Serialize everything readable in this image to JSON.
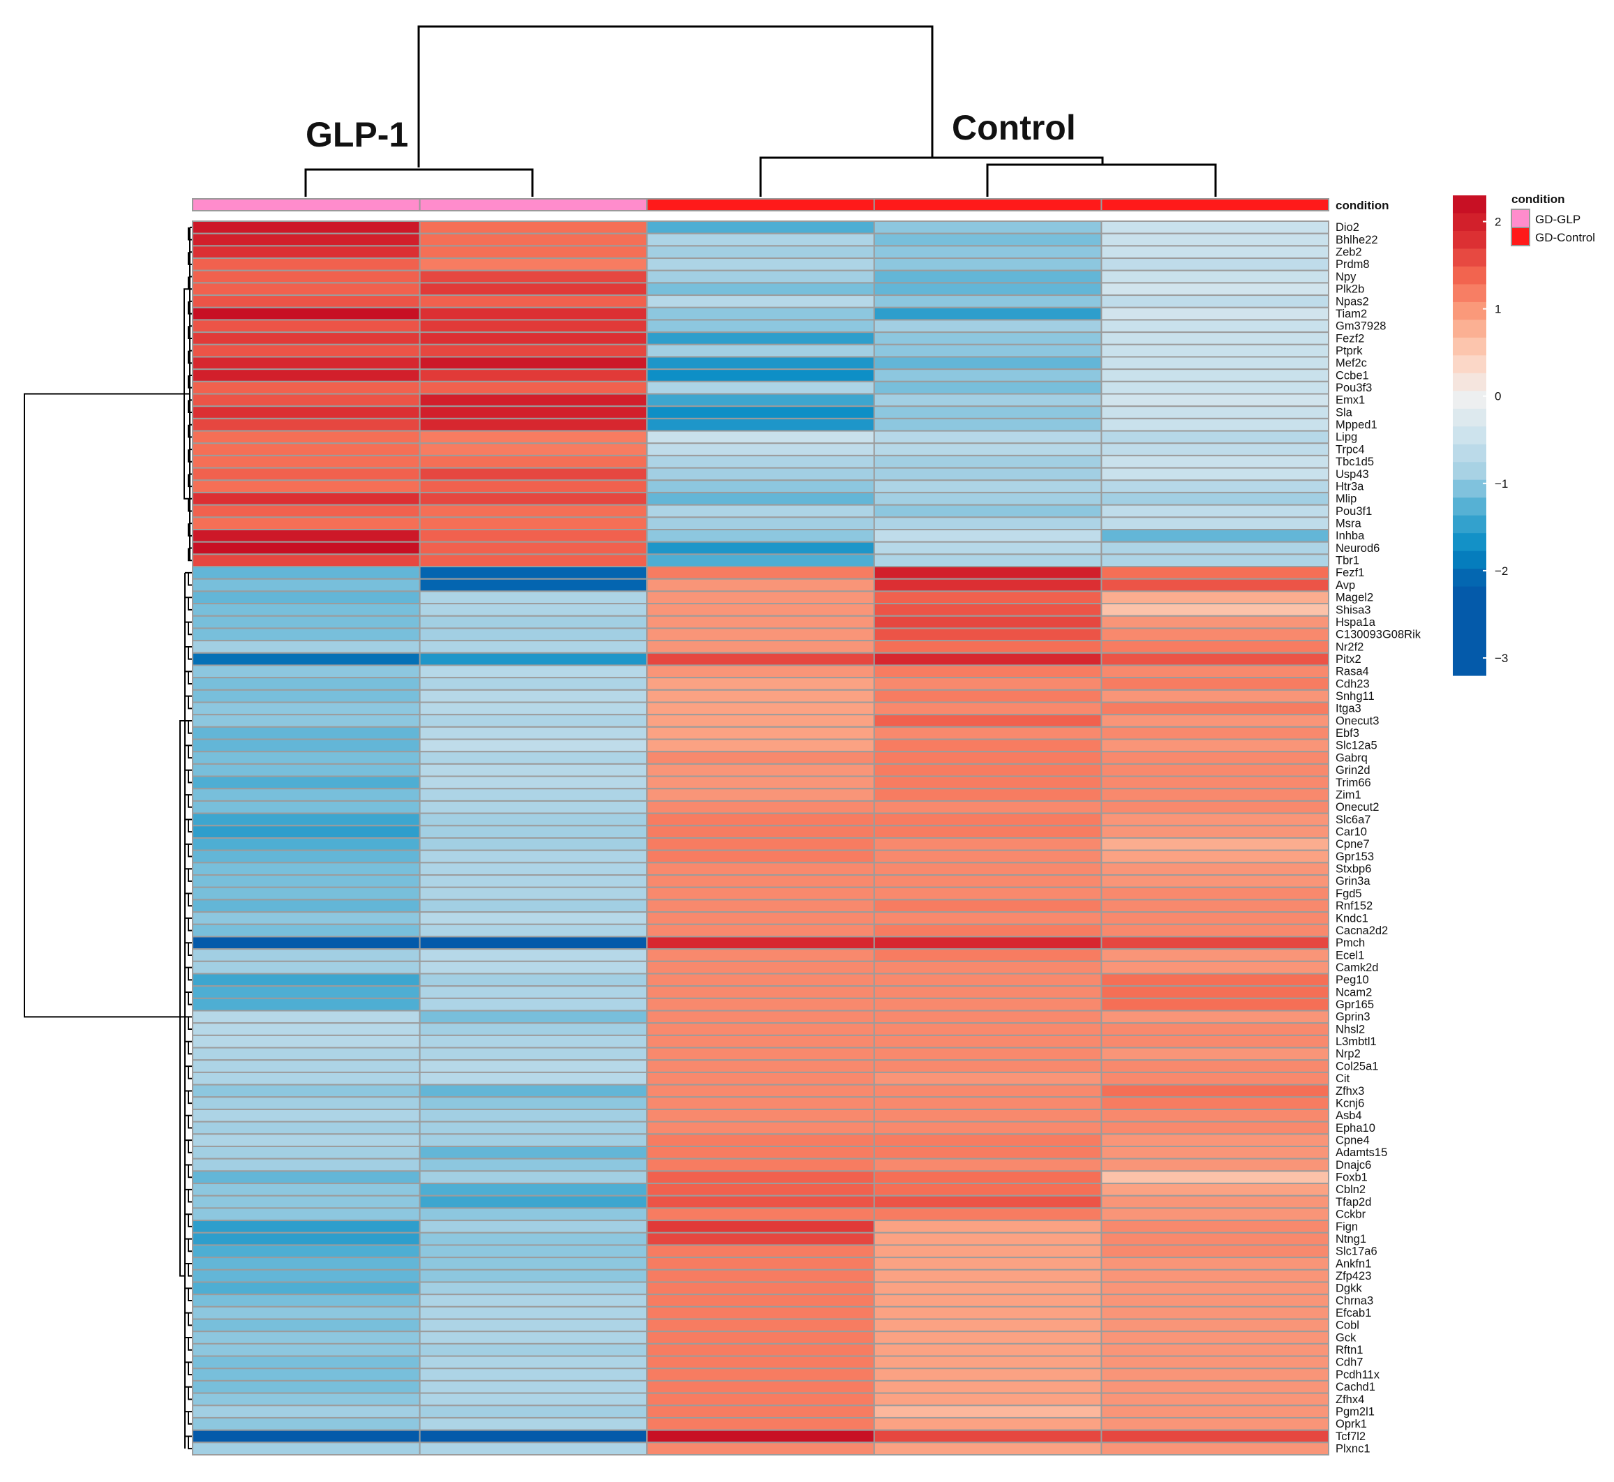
{
  "chart_data": {
    "type": "heatmap",
    "title": "",
    "group_labels": [
      "GLP-1",
      "Control"
    ],
    "condition_label": "condition",
    "samples": [
      "GD-GLP",
      "GD-GLP",
      "GD-Control",
      "GD-Control",
      "GD-Control"
    ],
    "legend": {
      "title": "condition",
      "entries": [
        {
          "label": "GD-GLP",
          "color": "#ff8ccc"
        },
        {
          "label": "GD-Control",
          "color": "#ff1a1a"
        }
      ]
    },
    "colorbar": {
      "ticks": [
        2,
        1,
        0,
        -1,
        -2,
        -3
      ],
      "tick_labels": [
        "2",
        "1",
        "0",
        "−1",
        "−2",
        "−3"
      ],
      "range": [
        -3.2,
        2.3
      ]
    },
    "genes": [
      "Dio2",
      "Bhlhe22",
      "Zeb2",
      "Prdm8",
      "Npy",
      "Plk2b",
      "Npas2",
      "Tiam2",
      "Gm37928",
      "Fezf2",
      "Ptprk",
      "Mef2c",
      "Ccbe1",
      "Pou3f3",
      "Emx1",
      "Sla",
      "Mpped1",
      "Lipg",
      "Trpc4",
      "Tbc1d5",
      "Usp43",
      "Htr3a",
      "Mlip",
      "Pou3f1",
      "Msra",
      "Inhba",
      "Neurod6",
      "Tbr1",
      "Fezf1",
      "Avp",
      "Magel2",
      "Shisa3",
      "Hspa1a",
      "C130093G08Rik",
      "Nr2f2",
      "Pitx2",
      "Rasa4",
      "Cdh23",
      "Snhg11",
      "Itga3",
      "Onecut3",
      "Ebf3",
      "Slc12a5",
      "Gabrq",
      "Grin2d",
      "Trim66",
      "Zim1",
      "Onecut2",
      "Slc6a7",
      "Car10",
      "Cpne7",
      "Gpr153",
      "Stxbp6",
      "Grin3a",
      "Fgd5",
      "Rnf152",
      "Kndc1",
      "Cacna2d2",
      "Pmch",
      "Ecel1",
      "Camk2d",
      "Peg10",
      "Ncam2",
      "Gpr165",
      "Gprin3",
      "Nhsl2",
      "L3mbtl1",
      "Nrp2",
      "Col25a1",
      "Cit",
      "Zfhx3",
      "Kcnj6",
      "Asb4",
      "Epha10",
      "Cpne4",
      "Adamts15",
      "Dnajc6",
      "Foxb1",
      "Cbln2",
      "Tfap2d",
      "Cckbr",
      "Fign",
      "Ntng1",
      "Slc17a6",
      "Ankfn1",
      "Zfp423",
      "Dgkk",
      "Chrna3",
      "Efcab1",
      "Cobl",
      "Gck",
      "Rftn1",
      "Cdh7",
      "Pcdh11x",
      "Cachd1",
      "Zfhx4",
      "Pgm2l1",
      "Oprk1",
      "Tcf7l2",
      "Plxnc1"
    ],
    "values": [
      [
        2.1,
        1.3,
        -1.3,
        -1.0,
        -0.5
      ],
      [
        2.0,
        1.3,
        -0.8,
        -1.1,
        -0.5
      ],
      [
        1.8,
        1.3,
        -0.9,
        -1.0,
        -0.5
      ],
      [
        1.4,
        1.2,
        -0.8,
        -1.0,
        -0.6
      ],
      [
        1.4,
        1.6,
        -0.9,
        -1.2,
        -0.5
      ],
      [
        1.4,
        1.7,
        -1.1,
        -1.2,
        -0.4
      ],
      [
        1.5,
        1.4,
        -0.7,
        -1.0,
        -0.6
      ],
      [
        2.2,
        1.8,
        -1.0,
        -1.5,
        -0.4
      ],
      [
        1.5,
        1.7,
        -1.0,
        -0.9,
        -0.5
      ],
      [
        1.7,
        1.8,
        -1.5,
        -1.0,
        -0.5
      ],
      [
        1.5,
        1.6,
        -0.9,
        -1.0,
        -0.5
      ],
      [
        1.9,
        2.1,
        -1.6,
        -1.2,
        -0.5
      ],
      [
        2.0,
        1.7,
        -1.7,
        -1.0,
        -0.5
      ],
      [
        1.4,
        1.4,
        -0.8,
        -1.1,
        -0.5
      ],
      [
        1.5,
        2.0,
        -1.4,
        -0.9,
        -0.4
      ],
      [
        1.8,
        2.0,
        -1.7,
        -1.0,
        -0.5
      ],
      [
        1.6,
        1.9,
        -1.6,
        -1.0,
        -0.5
      ],
      [
        1.3,
        1.2,
        -0.5,
        -0.7,
        -0.7
      ],
      [
        1.3,
        1.2,
        -0.6,
        -0.7,
        -0.6
      ],
      [
        1.3,
        1.3,
        -0.8,
        -0.9,
        -0.5
      ],
      [
        1.4,
        1.6,
        -0.9,
        -0.9,
        -0.5
      ],
      [
        1.3,
        1.4,
        -1.0,
        -0.8,
        -0.7
      ],
      [
        1.8,
        1.6,
        -1.2,
        -0.9,
        -0.9
      ],
      [
        1.4,
        1.3,
        -0.8,
        -1.0,
        -0.6
      ],
      [
        1.3,
        1.3,
        -0.9,
        -0.8,
        -0.6
      ],
      [
        2.1,
        1.4,
        -1.0,
        -0.6,
        -1.2
      ],
      [
        2.2,
        1.4,
        -1.6,
        -0.7,
        -0.8
      ],
      [
        1.6,
        1.4,
        -1.3,
        -0.8,
        -0.8
      ],
      [
        -1.2,
        -2.1,
        1.2,
        2.0,
        1.3
      ],
      [
        -1.1,
        -2.1,
        1.0,
        1.8,
        1.5
      ],
      [
        -1.2,
        -0.8,
        1.0,
        1.4,
        0.8
      ],
      [
        -1.1,
        -0.8,
        1.0,
        1.5,
        0.6
      ],
      [
        -1.1,
        -0.9,
        1.0,
        1.6,
        1.0
      ],
      [
        -1.1,
        -0.9,
        1.0,
        1.5,
        1.1
      ],
      [
        -0.9,
        -0.8,
        1.0,
        1.3,
        1.2
      ],
      [
        -2.0,
        -1.6,
        1.6,
        1.9,
        1.5
      ],
      [
        -1.0,
        -0.7,
        1.0,
        1.2,
        1.1
      ],
      [
        -1.1,
        -0.8,
        0.9,
        1.1,
        1.2
      ],
      [
        -1.1,
        -0.7,
        0.9,
        1.2,
        1.0
      ],
      [
        -1.0,
        -0.7,
        0.9,
        1.1,
        1.2
      ],
      [
        -1.0,
        -0.8,
        0.9,
        1.4,
        1.0
      ],
      [
        -1.2,
        -0.7,
        0.9,
        1.1,
        1.1
      ],
      [
        -1.2,
        -0.6,
        0.9,
        1.2,
        1.0
      ],
      [
        -1.1,
        -0.8,
        1.1,
        1.2,
        1.1
      ],
      [
        -1.1,
        -0.7,
        1.0,
        1.2,
        1.1
      ],
      [
        -1.3,
        -0.7,
        1.0,
        1.2,
        1.1
      ],
      [
        -1.1,
        -0.8,
        1.0,
        1.2,
        1.1
      ],
      [
        -1.1,
        -0.8,
        1.1,
        1.1,
        1.1
      ],
      [
        -1.4,
        -0.9,
        1.2,
        1.2,
        1.0
      ],
      [
        -1.5,
        -0.9,
        1.2,
        1.2,
        1.0
      ],
      [
        -1.3,
        -0.9,
        1.2,
        1.1,
        0.8
      ],
      [
        -1.2,
        -0.8,
        1.2,
        1.1,
        0.9
      ],
      [
        -1.1,
        -0.8,
        1.1,
        1.1,
        1.0
      ],
      [
        -1.1,
        -0.8,
        1.1,
        1.1,
        1.0
      ],
      [
        -1.1,
        -0.8,
        1.1,
        1.1,
        1.1
      ],
      [
        -1.2,
        -0.9,
        1.1,
        1.2,
        1.1
      ],
      [
        -1.0,
        -0.7,
        1.1,
        1.1,
        1.1
      ],
      [
        -1.1,
        -0.8,
        1.1,
        1.2,
        1.1
      ],
      [
        -2.6,
        -2.3,
        1.9,
        1.9,
        1.6
      ],
      [
        -0.9,
        -0.7,
        1.1,
        1.2,
        1.0
      ],
      [
        -0.9,
        -0.7,
        1.1,
        1.1,
        1.0
      ],
      [
        -1.4,
        -0.9,
        1.1,
        1.1,
        1.3
      ],
      [
        -1.3,
        -0.8,
        1.1,
        1.1,
        1.3
      ],
      [
        -1.3,
        -0.8,
        1.1,
        1.1,
        1.3
      ],
      [
        -0.7,
        -1.1,
        1.1,
        1.1,
        1.0
      ],
      [
        -0.7,
        -0.9,
        1.1,
        1.1,
        1.1
      ],
      [
        -0.7,
        -0.8,
        1.1,
        1.1,
        1.1
      ],
      [
        -0.8,
        -0.8,
        1.1,
        1.1,
        1.0
      ],
      [
        -0.8,
        -0.7,
        1.1,
        1.1,
        1.1
      ],
      [
        -0.8,
        -0.7,
        1.1,
        1.0,
        1.1
      ],
      [
        -1.0,
        -1.2,
        1.1,
        1.1,
        1.3
      ],
      [
        -0.9,
        -1.0,
        1.1,
        1.1,
        1.2
      ],
      [
        -0.8,
        -0.9,
        1.1,
        1.1,
        1.1
      ],
      [
        -0.9,
        -0.9,
        1.1,
        1.1,
        1.1
      ],
      [
        -0.8,
        -0.9,
        1.2,
        1.2,
        1.0
      ],
      [
        -0.9,
        -1.2,
        1.2,
        1.2,
        1.0
      ],
      [
        -0.9,
        -1.0,
        1.2,
        1.1,
        1.0
      ],
      [
        -1.2,
        -0.9,
        1.4,
        1.3,
        0.6
      ],
      [
        -1.0,
        -1.3,
        1.4,
        1.3,
        0.9
      ],
      [
        -1.0,
        -1.4,
        1.5,
        1.5,
        1.0
      ],
      [
        -1.0,
        -1.0,
        1.2,
        1.2,
        1.0
      ],
      [
        -1.5,
        -0.9,
        1.7,
        0.9,
        1.1
      ],
      [
        -1.5,
        -1.0,
        1.6,
        0.9,
        1.1
      ],
      [
        -1.3,
        -1.0,
        1.2,
        0.9,
        1.1
      ],
      [
        -1.2,
        -1.0,
        1.2,
        0.9,
        1.0
      ],
      [
        -1.2,
        -1.0,
        1.2,
        0.9,
        1.0
      ],
      [
        -1.3,
        -0.9,
        1.2,
        0.9,
        1.0
      ],
      [
        -1.1,
        -0.8,
        1.2,
        0.9,
        1.0
      ],
      [
        -1.0,
        -0.8,
        1.2,
        0.9,
        1.0
      ],
      [
        -1.1,
        -0.8,
        1.2,
        0.9,
        1.0
      ],
      [
        -1.0,
        -0.8,
        1.2,
        0.9,
        1.0
      ],
      [
        -1.0,
        -0.9,
        1.2,
        0.9,
        1.0
      ],
      [
        -1.1,
        -0.8,
        1.2,
        0.9,
        1.0
      ],
      [
        -1.1,
        -0.8,
        1.2,
        0.9,
        1.0
      ],
      [
        -1.1,
        -0.8,
        1.2,
        0.9,
        1.0
      ],
      [
        -1.0,
        -0.8,
        1.2,
        0.9,
        1.0
      ],
      [
        -0.9,
        -0.9,
        1.2,
        0.7,
        1.0
      ],
      [
        -1.0,
        -0.8,
        1.2,
        0.9,
        1.0
      ],
      [
        -2.3,
        -2.8,
        2.3,
        1.6,
        1.6
      ],
      [
        -0.9,
        -0.8,
        1.1,
        0.9,
        1.0
      ]
    ]
  }
}
